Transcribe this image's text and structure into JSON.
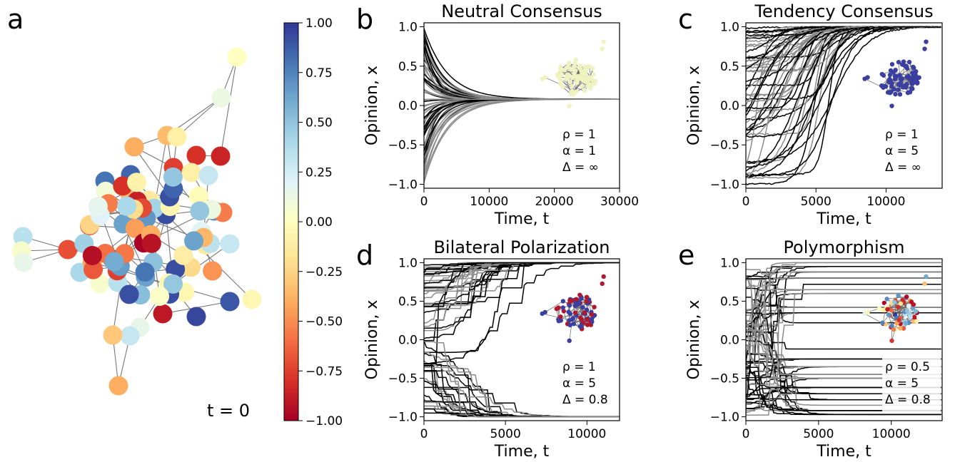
{
  "network_panel": {
    "letter": "a",
    "time_label": "t = 0",
    "colorbar": {
      "min": -1.0,
      "max": 1.0,
      "ticks": [
        "1.00",
        "0.75",
        "0.50",
        "0.25",
        "0.00",
        "−0.25",
        "−0.50",
        "−0.75",
        "−1.00"
      ],
      "tick_values": [
        1.0,
        0.75,
        0.5,
        0.25,
        0.0,
        -0.25,
        -0.5,
        -0.75,
        -1.0
      ]
    }
  },
  "chart_data": [
    {
      "type": "line",
      "letter": "b",
      "title": "Neutral Consensus",
      "xlabel": "Time, t",
      "ylabel": "Opinion, x",
      "xlim": [
        0,
        30000
      ],
      "ylim": [
        -1.05,
        1.05
      ],
      "xticks": [
        0,
        10000,
        20000,
        30000
      ],
      "yticks": [
        -1.0,
        -0.5,
        0.0,
        0.5,
        1.0
      ],
      "xtick_labels": [
        "0",
        "10000",
        "20000",
        "30000"
      ],
      "ytick_labels": [
        "−1.0",
        "−0.5",
        "0.0",
        "0.5",
        "1.0"
      ],
      "params": [
        "ρ = 1",
        "α = 1",
        "Δ = ∞"
      ],
      "final_values": [
        0.08
      ],
      "inset_network_color": "#eef3c0"
    },
    {
      "type": "line",
      "letter": "c",
      "title": "Tendency Consensus",
      "xlabel": "Time, t",
      "ylabel": "Opinion, x",
      "xlim": [
        0,
        14000
      ],
      "ylim": [
        -1.05,
        1.05
      ],
      "xticks": [
        0,
        5000,
        10000
      ],
      "yticks": [
        -1.0,
        -0.5,
        0.0,
        0.5,
        1.0
      ],
      "xtick_labels": [
        "0",
        "5000",
        "10000"
      ],
      "ytick_labels": [
        "−1.0",
        "−0.5",
        "0.0",
        "0.5",
        "1.0"
      ],
      "params": [
        "ρ = 1",
        "α = 5",
        "Δ = ∞"
      ],
      "final_values": [
        1.0
      ],
      "inset_network_color": "#3a3fa0"
    },
    {
      "type": "line",
      "letter": "d",
      "title": "Bilateral Polarization",
      "xlabel": "Time, t",
      "ylabel": "Opinion, x",
      "xlim": [
        0,
        12000
      ],
      "ylim": [
        -1.05,
        1.05
      ],
      "xticks": [
        0,
        5000,
        10000
      ],
      "yticks": [
        -1.0,
        -0.5,
        0.0,
        0.5,
        1.0
      ],
      "xtick_labels": [
        "0",
        "5000",
        "10000"
      ],
      "ytick_labels": [
        "−1.0",
        "−0.5",
        "0.0",
        "0.5",
        "1.0"
      ],
      "params": [
        "ρ = 1",
        "α = 5",
        "Δ = 0.8"
      ],
      "final_values": [
        1.0,
        -1.0
      ],
      "inset_network_color": "#3a3fa0"
    },
    {
      "type": "line",
      "letter": "e",
      "title": "Polymorphism",
      "xlabel": "Time, t",
      "ylabel": "Opinion, x",
      "xlim": [
        0,
        13500
      ],
      "ylim": [
        -1.05,
        1.05
      ],
      "xticks": [
        0,
        5000,
        10000
      ],
      "yticks": [
        -1.0,
        -0.5,
        0.0,
        0.5,
        1.0
      ],
      "xtick_labels": [
        "0",
        "5000",
        "10000"
      ],
      "ytick_labels": [
        "−1.0",
        "−0.5",
        "0.0",
        "0.5",
        "1.0"
      ],
      "params": [
        "ρ = 0.5",
        "α = 5",
        "Δ = 0.8"
      ],
      "final_values": [
        1.0,
        0.95,
        0.88,
        0.8,
        0.72,
        0.65,
        0.6,
        0.5,
        0.42,
        0.35,
        0.22,
        -0.12,
        -0.25,
        -0.35,
        -0.45,
        -0.5,
        -0.62,
        -0.7,
        -0.78,
        -0.85,
        -0.92,
        -0.97,
        -1.0
      ],
      "inset_network_color": "#3a3fa0"
    }
  ]
}
